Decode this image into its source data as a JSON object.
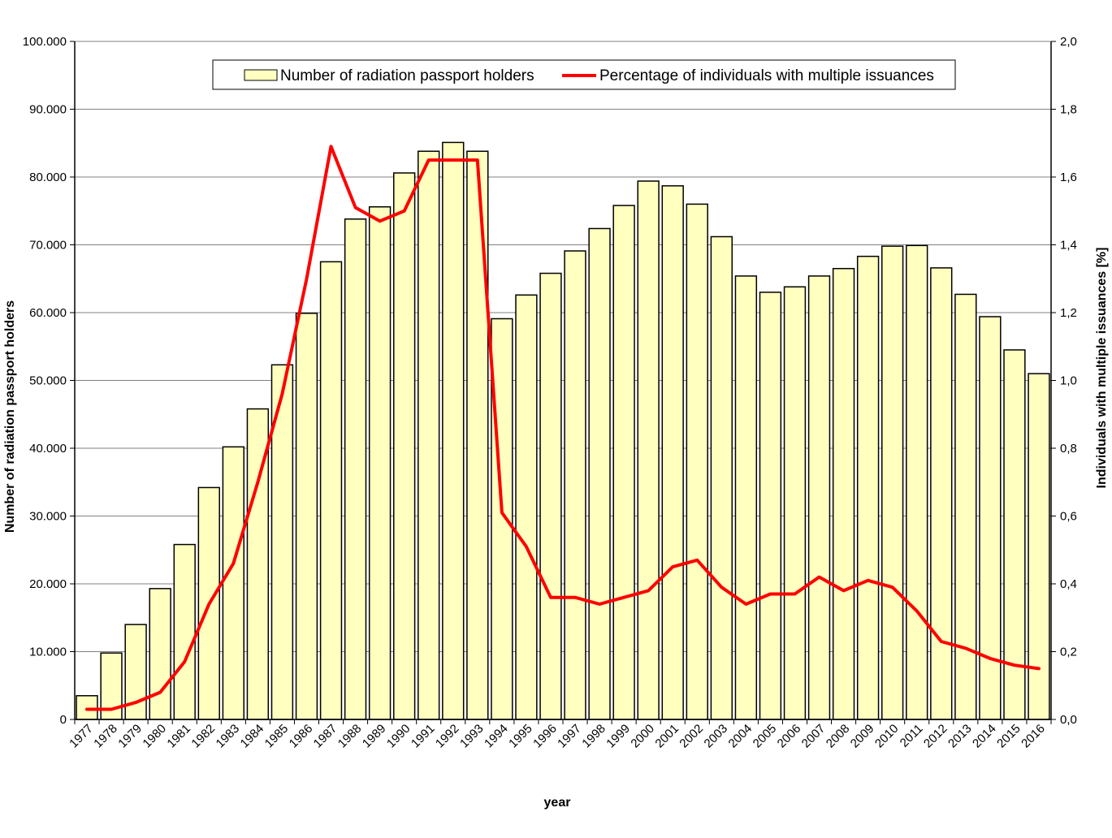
{
  "chart_data": {
    "type": "bar",
    "xlabel": "year",
    "ylabel_left": "Number of radiation passport holders",
    "ylabel_right": "Individuals  with multiple issuances [%]",
    "categories": [
      "1977",
      "1978",
      "1979",
      "1980",
      "1981",
      "1982",
      "1983",
      "1984",
      "1985",
      "1986",
      "1987",
      "1988",
      "1989",
      "1990",
      "1991",
      "1992",
      "1993",
      "1994",
      "1995",
      "1996",
      "1997",
      "1998",
      "1999",
      "2000",
      "2001",
      "2002",
      "2003",
      "2004",
      "2005",
      "2006",
      "2007",
      "2008",
      "2009",
      "2010",
      "2011",
      "2012",
      "2013",
      "2014",
      "2015",
      "2016"
    ],
    "left_axis": {
      "ylim": [
        0,
        100000
      ],
      "ticks": [
        "0",
        "10.000",
        "20.000",
        "30.000",
        "40.000",
        "50.000",
        "60.000",
        "70.000",
        "80.000",
        "90.000",
        "100.000"
      ]
    },
    "right_axis": {
      "ylim": [
        0,
        2.0
      ],
      "ticks": [
        "0,0",
        "0,2",
        "0,4",
        "0,6",
        "0,8",
        "1,0",
        "1,2",
        "1,4",
        "1,6",
        "1,8",
        "2,0"
      ]
    },
    "grid": "horizontal",
    "legend_position": "top-center",
    "series": [
      {
        "name": "Number of radiation passport holders",
        "type": "bar",
        "axis": "left",
        "color": "#ffffc0",
        "values": [
          3500,
          9800,
          14000,
          19300,
          25800,
          34200,
          40200,
          45800,
          52300,
          59900,
          67500,
          73800,
          75600,
          80600,
          83800,
          85100,
          83800,
          59100,
          62600,
          65800,
          69100,
          72400,
          75800,
          79400,
          78700,
          76000,
          71200,
          65400,
          63000,
          63800,
          65400,
          66500,
          68300,
          69800,
          69900,
          66600,
          62700,
          59400,
          54500,
          51000
        ]
      },
      {
        "name": "Percentage of individuals with multiple issuances",
        "type": "line",
        "axis": "right",
        "color": "#ff0000",
        "values": [
          0.03,
          0.03,
          0.05,
          0.08,
          0.17,
          0.34,
          0.46,
          0.7,
          0.96,
          1.3,
          1.69,
          1.51,
          1.47,
          1.5,
          1.65,
          1.65,
          1.65,
          0.61,
          0.51,
          0.36,
          0.36,
          0.34,
          0.36,
          0.38,
          0.45,
          0.47,
          0.39,
          0.34,
          0.37,
          0.37,
          0.42,
          0.38,
          0.41,
          0.39,
          0.32,
          0.23,
          0.21,
          0.18,
          0.16,
          0.15
        ]
      }
    ]
  }
}
